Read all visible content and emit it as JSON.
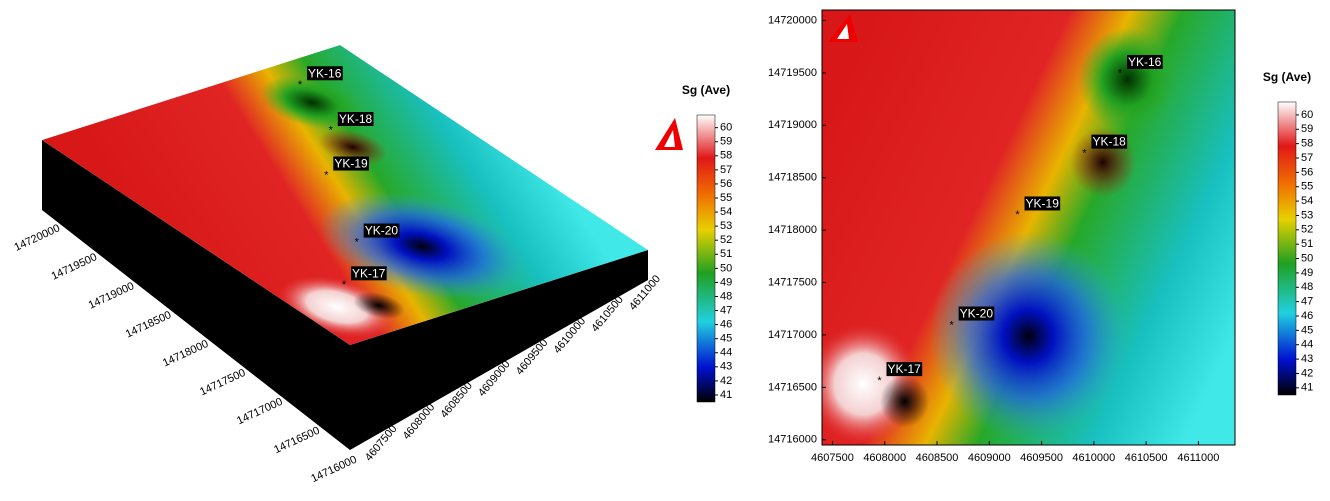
{
  "chart_data": [
    {
      "type": "surface3d",
      "xlim": [
        4607400,
        4611350
      ],
      "ylim": [
        14715950,
        14720100
      ],
      "xticks": [
        4607500,
        4608000,
        4608500,
        4609000,
        4609500,
        4610000,
        4610500,
        4611000
      ],
      "yticks": [
        14716000,
        14716500,
        14717000,
        14717500,
        14718000,
        14718500,
        14719000,
        14719500,
        14720000
      ],
      "wells": {
        "names": [
          "YK-16",
          "YK-18",
          "YK-19",
          "YK-20",
          "YK-17"
        ],
        "x": [
          4610250,
          4609910,
          4609270,
          4608640,
          4607950
        ],
        "y": [
          14719520,
          14718760,
          14718170,
          14717120,
          14716590
        ]
      },
      "colorbar": {
        "title": "Sg (Ave)",
        "clim": [
          40.5,
          60.9
        ],
        "ticks": [
          41,
          42,
          43,
          44,
          45,
          46,
          47,
          48,
          49,
          50,
          51,
          52,
          53,
          54,
          55,
          56,
          57,
          58,
          59,
          60
        ]
      }
    },
    {
      "type": "contour",
      "xlim": [
        4607400,
        4611350
      ],
      "ylim": [
        14715950,
        14720100
      ],
      "xticks": [
        4607500,
        4608000,
        4608500,
        4609000,
        4609500,
        4610000,
        4610500,
        4611000
      ],
      "yticks": [
        14716000,
        14716500,
        14717000,
        14717500,
        14718000,
        14718500,
        14719000,
        14719500,
        14720000
      ],
      "wells": {
        "names": [
          "YK-16",
          "YK-18",
          "YK-19",
          "YK-20",
          "YK-17"
        ],
        "x": [
          4610250,
          4609910,
          4609270,
          4608640,
          4607950
        ],
        "y": [
          14719520,
          14718760,
          14718170,
          14717120,
          14716590
        ]
      },
      "colorbar": {
        "title": "Sg (Ave)",
        "clim": [
          40.5,
          60.9
        ],
        "ticks": [
          41,
          42,
          43,
          44,
          45,
          46,
          47,
          48,
          49,
          50,
          51,
          52,
          53,
          54,
          55,
          56,
          57,
          58,
          59,
          60
        ]
      }
    }
  ]
}
